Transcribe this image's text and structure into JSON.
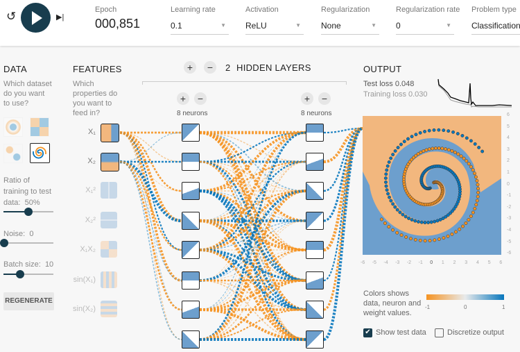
{
  "controls": {
    "reset_icon": "reset-icon",
    "play_icon": "play-icon",
    "step_icon": "step-icon",
    "epoch_label": "Epoch",
    "epoch_value": "000,851",
    "learning_rate": {
      "label": "Learning rate",
      "value": "0.1"
    },
    "activation": {
      "label": "Activation",
      "value": "ReLU"
    },
    "regularization": {
      "label": "Regularization",
      "value": "None"
    },
    "regularization_rate": {
      "label": "Regularization rate",
      "value": "0"
    },
    "problem_type": {
      "label": "Problem type",
      "value": "Classification"
    }
  },
  "data": {
    "title": "DATA",
    "question": "Which dataset do you want to use?",
    "datasets": [
      "circle",
      "xor",
      "gaussian",
      "spiral"
    ],
    "selected_dataset": "spiral",
    "ratio_label": "Ratio of training to test data:",
    "ratio_value": "50%",
    "ratio": 50,
    "noise_label": "Noise:",
    "noise_value": "0",
    "noise": 0,
    "batch_label": "Batch size:",
    "batch_value": "10",
    "batch": 10,
    "regenerate": "REGENERATE"
  },
  "features": {
    "title": "FEATURES",
    "question": "Which properties do you want to feed in?",
    "items": [
      {
        "label": "X₁",
        "active": true
      },
      {
        "label": "X₂",
        "active": true
      },
      {
        "label": "X₁²",
        "active": false
      },
      {
        "label": "X₂²",
        "active": false
      },
      {
        "label": "X₁X₂",
        "active": false
      },
      {
        "label": "sin(X₁)",
        "active": false
      },
      {
        "label": "sin(X₂)",
        "active": false
      }
    ]
  },
  "network": {
    "hidden_layers_count": "2",
    "hidden_layers_label": "HIDDEN LAYERS",
    "add": "+",
    "remove": "−",
    "layers": [
      {
        "neurons_label": "8 neurons"
      },
      {
        "neurons_label": "8 neurons"
      }
    ]
  },
  "output": {
    "title": "OUTPUT",
    "test_loss": "Test loss 0.048",
    "training_loss": "Training loss 0.030",
    "x_ticks": [
      "-6",
      "-5",
      "-4",
      "-3",
      "-2",
      "-1",
      "0",
      "1",
      "2",
      "3",
      "4",
      "5",
      "6"
    ],
    "y_ticks": [
      "6",
      "5",
      "4",
      "3",
      "2",
      "1",
      "0",
      "-1",
      "-2",
      "-3",
      "-4",
      "-5",
      "-6"
    ],
    "legend_text": "Colors shows data, neuron and weight values.",
    "legend_ticks": [
      "-1",
      "0",
      "1"
    ],
    "show_test_data": {
      "label": "Show test data",
      "checked": true
    },
    "discretize": {
      "label": "Discretize output",
      "checked": false
    }
  },
  "colors": {
    "orange": "#f59322",
    "blue": "#0877bd",
    "dark": "#183d4e"
  }
}
